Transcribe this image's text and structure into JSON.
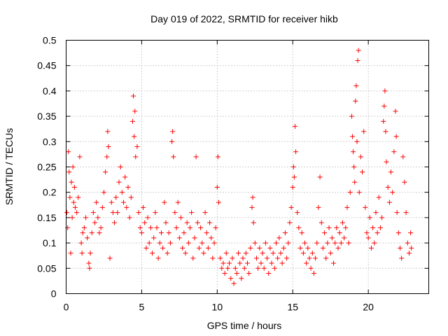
{
  "chart_data": {
    "type": "scatter",
    "title": "Day 019 of 2022, SRMTID for receiver hikb",
    "xlabel": "GPS time / hours",
    "ylabel": "SRMTID / TECUs",
    "xlim": [
      0,
      24
    ],
    "ylim": [
      0,
      0.5
    ],
    "xticks": [
      "0",
      "5",
      "10",
      "15",
      "20"
    ],
    "yticks": [
      "0",
      "0.05",
      "0.1",
      "0.15",
      "0.2",
      "0.25",
      "0.3",
      "0.35",
      "0.4",
      "0.45",
      "0.5"
    ],
    "grid": true,
    "marker": "plus",
    "color": "#ff0000",
    "series": [
      {
        "points": [
          [
            0.05,
            0.16
          ],
          [
            0.1,
            0.13
          ],
          [
            0.15,
            0.28
          ],
          [
            0.2,
            0.24
          ],
          [
            0.25,
            0.19
          ],
          [
            0.3,
            0.08
          ],
          [
            0.35,
            0.22
          ],
          [
            0.4,
            0.15
          ],
          [
            0.45,
            0.25
          ],
          [
            0.5,
            0.18
          ],
          [
            0.55,
            0.21
          ],
          [
            0.6,
            0.17
          ],
          [
            0.7,
            0.16
          ],
          [
            0.8,
            0.19
          ],
          [
            0.9,
            0.27
          ],
          [
            1.0,
            0.1
          ],
          [
            1.05,
            0.08
          ],
          [
            1.1,
            0.12
          ],
          [
            1.2,
            0.13
          ],
          [
            1.3,
            0.15
          ],
          [
            1.4,
            0.11
          ],
          [
            1.5,
            0.06
          ],
          [
            1.55,
            0.05
          ],
          [
            1.6,
            0.08
          ],
          [
            1.7,
            0.12
          ],
          [
            1.8,
            0.16
          ],
          [
            1.9,
            0.14
          ],
          [
            2.0,
            0.18
          ],
          [
            2.1,
            0.15
          ],
          [
            2.2,
            0.12
          ],
          [
            2.3,
            0.13
          ],
          [
            2.4,
            0.17
          ],
          [
            2.5,
            0.2
          ],
          [
            2.6,
            0.24
          ],
          [
            2.7,
            0.27
          ],
          [
            2.75,
            0.32
          ],
          [
            2.8,
            0.29
          ],
          [
            2.9,
            0.07
          ],
          [
            3.0,
            0.18
          ],
          [
            3.1,
            0.16
          ],
          [
            3.2,
            0.14
          ],
          [
            3.3,
            0.19
          ],
          [
            3.4,
            0.16
          ],
          [
            3.5,
            0.22
          ],
          [
            3.6,
            0.25
          ],
          [
            3.7,
            0.2
          ],
          [
            3.8,
            0.18
          ],
          [
            3.9,
            0.23
          ],
          [
            4.0,
            0.17
          ],
          [
            4.1,
            0.21
          ],
          [
            4.2,
            0.15
          ],
          [
            4.3,
            0.19
          ],
          [
            4.4,
            0.34
          ],
          [
            4.45,
            0.39
          ],
          [
            4.5,
            0.31
          ],
          [
            4.55,
            0.36
          ],
          [
            4.6,
            0.27
          ],
          [
            4.7,
            0.29
          ],
          [
            4.8,
            0.16
          ],
          [
            4.9,
            0.13
          ],
          [
            5.0,
            0.12
          ],
          [
            5.1,
            0.17
          ],
          [
            5.2,
            0.14
          ],
          [
            5.3,
            0.09
          ],
          [
            5.4,
            0.15
          ],
          [
            5.5,
            0.1
          ],
          [
            5.6,
            0.13
          ],
          [
            5.7,
            0.08
          ],
          [
            5.8,
            0.11
          ],
          [
            5.9,
            0.16
          ],
          [
            6.0,
            0.13
          ],
          [
            6.1,
            0.07
          ],
          [
            6.2,
            0.1
          ],
          [
            6.3,
            0.12
          ],
          [
            6.4,
            0.09
          ],
          [
            6.5,
            0.18
          ],
          [
            6.6,
            0.14
          ],
          [
            6.7,
            0.08
          ],
          [
            6.8,
            0.12
          ],
          [
            6.9,
            0.1
          ],
          [
            7.0,
            0.3
          ],
          [
            7.05,
            0.32
          ],
          [
            7.1,
            0.27
          ],
          [
            7.2,
            0.16
          ],
          [
            7.3,
            0.13
          ],
          [
            7.4,
            0.18
          ],
          [
            7.5,
            0.11
          ],
          [
            7.6,
            0.15
          ],
          [
            7.7,
            0.09
          ],
          [
            7.8,
            0.12
          ],
          [
            7.9,
            0.08
          ],
          [
            8.0,
            0.14
          ],
          [
            8.1,
            0.1
          ],
          [
            8.2,
            0.13
          ],
          [
            8.3,
            0.16
          ],
          [
            8.4,
            0.07
          ],
          [
            8.5,
            0.11
          ],
          [
            8.6,
            0.27
          ],
          [
            8.7,
            0.14
          ],
          [
            8.8,
            0.09
          ],
          [
            8.9,
            0.13
          ],
          [
            9.0,
            0.1
          ],
          [
            9.1,
            0.08
          ],
          [
            9.2,
            0.16
          ],
          [
            9.3,
            0.12
          ],
          [
            9.4,
            0.09
          ],
          [
            9.5,
            0.14
          ],
          [
            9.6,
            0.11
          ],
          [
            9.7,
            0.07
          ],
          [
            9.8,
            0.1
          ],
          [
            9.9,
            0.13
          ],
          [
            10.0,
            0.21
          ],
          [
            10.05,
            0.27
          ],
          [
            10.1,
            0.18
          ],
          [
            10.2,
            0.07
          ],
          [
            10.3,
            0.05
          ],
          [
            10.4,
            0.06
          ],
          [
            10.5,
            0.04
          ],
          [
            10.6,
            0.08
          ],
          [
            10.7,
            0.05
          ],
          [
            10.8,
            0.06
          ],
          [
            10.9,
            0.03
          ],
          [
            11.0,
            0.07
          ],
          [
            11.1,
            0.02
          ],
          [
            11.2,
            0.05
          ],
          [
            11.3,
            0.04
          ],
          [
            11.4,
            0.08
          ],
          [
            11.5,
            0.06
          ],
          [
            11.6,
            0.03
          ],
          [
            11.7,
            0.07
          ],
          [
            11.8,
            0.05
          ],
          [
            11.9,
            0.08
          ],
          [
            12.0,
            0.06
          ],
          [
            12.1,
            0.04
          ],
          [
            12.2,
            0.09
          ],
          [
            12.3,
            0.17
          ],
          [
            12.35,
            0.19
          ],
          [
            12.4,
            0.14
          ],
          [
            12.5,
            0.1
          ],
          [
            12.6,
            0.07
          ],
          [
            12.7,
            0.05
          ],
          [
            12.8,
            0.09
          ],
          [
            12.9,
            0.06
          ],
          [
            13.0,
            0.08
          ],
          [
            13.1,
            0.05
          ],
          [
            13.2,
            0.1
          ],
          [
            13.3,
            0.07
          ],
          [
            13.4,
            0.04
          ],
          [
            13.5,
            0.09
          ],
          [
            13.6,
            0.06
          ],
          [
            13.7,
            0.08
          ],
          [
            13.8,
            0.05
          ],
          [
            13.9,
            0.1
          ],
          [
            14.0,
            0.07
          ],
          [
            14.1,
            0.11
          ],
          [
            14.2,
            0.08
          ],
          [
            14.3,
            0.06
          ],
          [
            14.4,
            0.09
          ],
          [
            14.5,
            0.12
          ],
          [
            14.6,
            0.07
          ],
          [
            14.7,
            0.1
          ],
          [
            14.8,
            0.14
          ],
          [
            14.9,
            0.17
          ],
          [
            15.0,
            0.21
          ],
          [
            15.05,
            0.25
          ],
          [
            15.1,
            0.23
          ],
          [
            15.15,
            0.33
          ],
          [
            15.2,
            0.28
          ],
          [
            15.3,
            0.16
          ],
          [
            15.4,
            0.13
          ],
          [
            15.5,
            0.09
          ],
          [
            15.6,
            0.12
          ],
          [
            15.7,
            0.08
          ],
          [
            15.8,
            0.1
          ],
          [
            15.9,
            0.06
          ],
          [
            16.0,
            0.09
          ],
          [
            16.1,
            0.07
          ],
          [
            16.2,
            0.05
          ],
          [
            16.3,
            0.08
          ],
          [
            16.4,
            0.04
          ],
          [
            16.5,
            0.07
          ],
          [
            16.6,
            0.1
          ],
          [
            16.7,
            0.17
          ],
          [
            16.8,
            0.23
          ],
          [
            16.9,
            0.14
          ],
          [
            17.0,
            0.09
          ],
          [
            17.1,
            0.12
          ],
          [
            17.2,
            0.07
          ],
          [
            17.3,
            0.1
          ],
          [
            17.4,
            0.13
          ],
          [
            17.5,
            0.08
          ],
          [
            17.6,
            0.11
          ],
          [
            17.7,
            0.06
          ],
          [
            17.8,
            0.1
          ],
          [
            17.9,
            0.13
          ],
          [
            18.0,
            0.09
          ],
          [
            18.1,
            0.12
          ],
          [
            18.2,
            0.1
          ],
          [
            18.3,
            0.14
          ],
          [
            18.4,
            0.11
          ],
          [
            18.5,
            0.13
          ],
          [
            18.6,
            0.17
          ],
          [
            18.7,
            0.1
          ],
          [
            18.8,
            0.2
          ],
          [
            18.9,
            0.35
          ],
          [
            18.95,
            0.31
          ],
          [
            19.0,
            0.28
          ],
          [
            19.05,
            0.25
          ],
          [
            19.1,
            0.22
          ],
          [
            19.15,
            0.38
          ],
          [
            19.2,
            0.41
          ],
          [
            19.25,
            0.3
          ],
          [
            19.3,
            0.46
          ],
          [
            19.35,
            0.48
          ],
          [
            19.4,
            0.2
          ],
          [
            19.5,
            0.27
          ],
          [
            19.6,
            0.24
          ],
          [
            19.7,
            0.32
          ],
          [
            19.8,
            0.17
          ],
          [
            19.9,
            0.12
          ],
          [
            20.0,
            0.11
          ],
          [
            20.1,
            0.15
          ],
          [
            20.2,
            0.09
          ],
          [
            20.3,
            0.13
          ],
          [
            20.4,
            0.1
          ],
          [
            20.5,
            0.16
          ],
          [
            20.6,
            0.12
          ],
          [
            20.7,
            0.19
          ],
          [
            20.8,
            0.13
          ],
          [
            20.9,
            0.15
          ],
          [
            21.0,
            0.34
          ],
          [
            21.05,
            0.37
          ],
          [
            21.1,
            0.4
          ],
          [
            21.15,
            0.32
          ],
          [
            21.2,
            0.26
          ],
          [
            21.3,
            0.21
          ],
          [
            21.4,
            0.18
          ],
          [
            21.5,
            0.24
          ],
          [
            21.6,
            0.2
          ],
          [
            21.7,
            0.28
          ],
          [
            21.8,
            0.36
          ],
          [
            21.85,
            0.31
          ],
          [
            21.9,
            0.16
          ],
          [
            22.0,
            0.12
          ],
          [
            22.1,
            0.09
          ],
          [
            22.2,
            0.07
          ],
          [
            22.3,
            0.27
          ],
          [
            22.4,
            0.22
          ],
          [
            22.5,
            0.16
          ],
          [
            22.6,
            0.1
          ],
          [
            22.7,
            0.08
          ],
          [
            22.8,
            0.12
          ],
          [
            22.85,
            0.09
          ]
        ]
      }
    ]
  }
}
